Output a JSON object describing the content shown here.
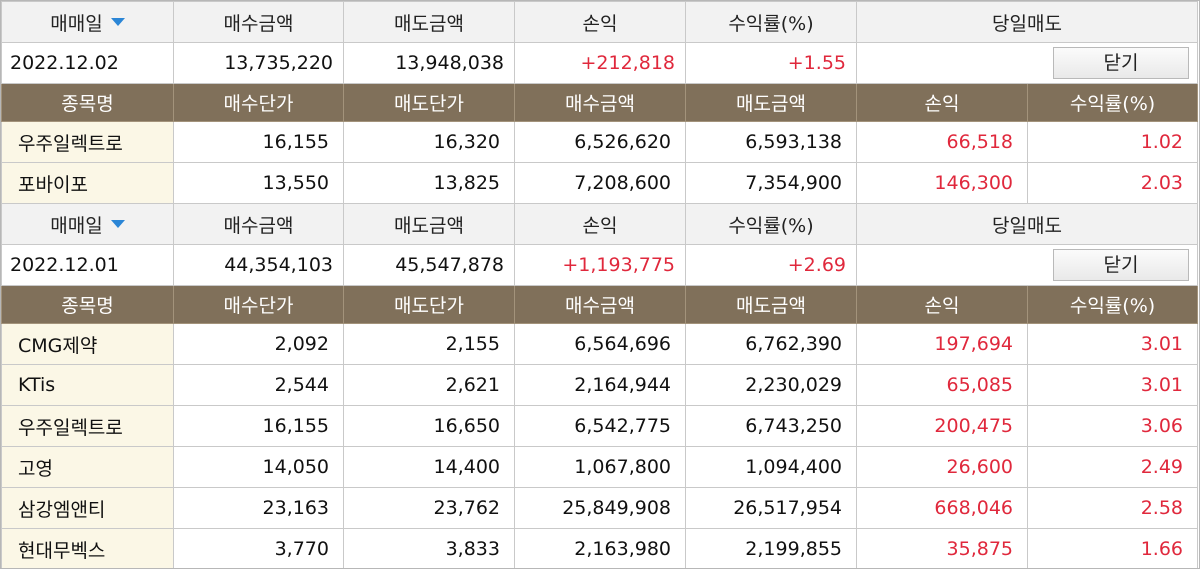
{
  "colors": {
    "header_bg": "#80705a",
    "name_cell_bg": "#fbf7e6",
    "positive": "#e0283c",
    "sort_arrow": "#2b86d6"
  },
  "summary_headers": {
    "date": "매매일",
    "buy_amount": "매수금액",
    "sell_amount": "매도금액",
    "pnl": "손익",
    "return_rate": "수익률(%)",
    "same_day": "당일매도",
    "sort_icon": "triangle-down-icon"
  },
  "detail_headers": {
    "name": "종목명",
    "buy_price": "매수단가",
    "sell_price": "매도단가",
    "buy_amount": "매수금액",
    "sell_amount": "매도금액",
    "pnl": "손익",
    "return_rate": "수익률(%)"
  },
  "groups": [
    {
      "summary": {
        "date": "2022.12.02",
        "buy_amount": "13,735,220",
        "sell_amount": "13,948,038",
        "pnl": "+212,818",
        "return_rate": "+1.55",
        "button": "닫기"
      },
      "rows": [
        {
          "name": "우주일렉트로",
          "buy_price": "16,155",
          "sell_price": "16,320",
          "buy_amount": "6,526,620",
          "sell_amount": "6,593,138",
          "pnl": "66,518",
          "return_rate": "1.02"
        },
        {
          "name": "포바이포",
          "buy_price": "13,550",
          "sell_price": "13,825",
          "buy_amount": "7,208,600",
          "sell_amount": "7,354,900",
          "pnl": "146,300",
          "return_rate": "2.03"
        }
      ]
    },
    {
      "summary": {
        "date": "2022.12.01",
        "buy_amount": "44,354,103",
        "sell_amount": "45,547,878",
        "pnl": "+1,193,775",
        "return_rate": "+2.69",
        "button": "닫기"
      },
      "rows": [
        {
          "name": "CMG제약",
          "buy_price": "2,092",
          "sell_price": "2,155",
          "buy_amount": "6,564,696",
          "sell_amount": "6,762,390",
          "pnl": "197,694",
          "return_rate": "3.01"
        },
        {
          "name": "KTis",
          "buy_price": "2,544",
          "sell_price": "2,621",
          "buy_amount": "2,164,944",
          "sell_amount": "2,230,029",
          "pnl": "65,085",
          "return_rate": "3.01"
        },
        {
          "name": "우주일렉트로",
          "buy_price": "16,155",
          "sell_price": "16,650",
          "buy_amount": "6,542,775",
          "sell_amount": "6,743,250",
          "pnl": "200,475",
          "return_rate": "3.06"
        },
        {
          "name": "고영",
          "buy_price": "14,050",
          "sell_price": "14,400",
          "buy_amount": "1,067,800",
          "sell_amount": "1,094,400",
          "pnl": "26,600",
          "return_rate": "2.49"
        },
        {
          "name": "삼강엠앤티",
          "buy_price": "23,163",
          "sell_price": "23,762",
          "buy_amount": "25,849,908",
          "sell_amount": "26,517,954",
          "pnl": "668,046",
          "return_rate": "2.58"
        },
        {
          "name": "현대무벡스",
          "buy_price": "3,770",
          "sell_price": "3,833",
          "buy_amount": "2,163,980",
          "sell_amount": "2,199,855",
          "pnl": "35,875",
          "return_rate": "1.66"
        }
      ]
    }
  ]
}
